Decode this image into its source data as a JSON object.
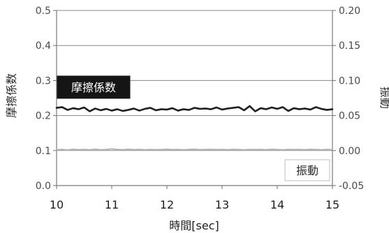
{
  "chart_data": {
    "type": "line",
    "title": "",
    "xlabel": "時間[sec]",
    "ylabel_left": "摩擦係数",
    "ylabel_right": "振動",
    "xlim": [
      10,
      15
    ],
    "ylim_left": [
      0.0,
      0.5
    ],
    "ylim_right": [
      -0.05,
      0.2
    ],
    "x_ticks": [
      "10",
      "11",
      "12",
      "13",
      "14",
      "15"
    ],
    "left_ticks": [
      "0.0",
      "0.1",
      "0.2",
      "0.3",
      "0.4",
      "0.5"
    ],
    "right_ticks": [
      "-0.05",
      "0.00",
      "0.05",
      "0.10",
      "0.15",
      "0.20"
    ],
    "grid": "horizontal",
    "series": [
      {
        "name": "摩擦係数",
        "axis": "left",
        "color": "#1f1f1f",
        "x": [
          10.0,
          10.1,
          10.2,
          10.3,
          10.4,
          10.5,
          10.6,
          10.7,
          10.8,
          10.9,
          11.0,
          11.1,
          11.2,
          11.3,
          11.4,
          11.5,
          11.6,
          11.7,
          11.8,
          11.9,
          12.0,
          12.1,
          12.2,
          12.3,
          12.4,
          12.5,
          12.6,
          12.7,
          12.8,
          12.9,
          13.0,
          13.1,
          13.2,
          13.3,
          13.4,
          13.5,
          13.6,
          13.7,
          13.8,
          13.9,
          14.0,
          14.1,
          14.2,
          14.3,
          14.4,
          14.5,
          14.6,
          14.7,
          14.8,
          14.9,
          15.0
        ],
        "y": [
          0.222,
          0.224,
          0.216,
          0.221,
          0.218,
          0.223,
          0.212,
          0.22,
          0.215,
          0.219,
          0.214,
          0.218,
          0.213,
          0.216,
          0.22,
          0.214,
          0.219,
          0.222,
          0.215,
          0.218,
          0.217,
          0.221,
          0.214,
          0.218,
          0.216,
          0.222,
          0.219,
          0.22,
          0.218,
          0.223,
          0.217,
          0.22,
          0.222,
          0.224,
          0.215,
          0.227,
          0.212,
          0.221,
          0.218,
          0.223,
          0.219,
          0.224,
          0.213,
          0.221,
          0.218,
          0.22,
          0.217,
          0.224,
          0.219,
          0.216,
          0.218
        ]
      },
      {
        "name": "振動",
        "axis": "right",
        "color": "#b5b5b5",
        "x": [
          10.0,
          10.1,
          10.2,
          10.3,
          10.4,
          10.5,
          10.6,
          10.7,
          10.8,
          10.9,
          11.0,
          11.1,
          11.2,
          11.3,
          11.4,
          11.5,
          11.6,
          11.7,
          11.8,
          11.9,
          12.0,
          12.1,
          12.2,
          12.3,
          12.4,
          12.5,
          12.6,
          12.7,
          12.8,
          12.9,
          13.0,
          13.1,
          13.2,
          13.3,
          13.4,
          13.5,
          13.6,
          13.7,
          13.8,
          13.9,
          14.0,
          14.1,
          14.2,
          14.3,
          14.4,
          14.5,
          14.6,
          14.7,
          14.8,
          14.9,
          15.0
        ],
        "y": [
          0.001,
          0.0015,
          0.0008,
          0.0018,
          0.0012,
          0.0016,
          0.001,
          0.0019,
          0.0011,
          0.0014,
          0.0024,
          0.0015,
          0.0012,
          0.0018,
          0.0013,
          0.0017,
          0.0011,
          0.0016,
          0.0012,
          0.0014,
          0.0018,
          0.0013,
          0.0016,
          0.0011,
          0.0015,
          0.0019,
          0.0012,
          0.0014,
          0.0017,
          0.0013,
          0.0015,
          0.0012,
          0.0017,
          0.0014,
          0.0011,
          0.0016,
          0.0013,
          0.0015,
          0.0012,
          0.0018,
          0.0014,
          0.0011,
          0.0016,
          0.0013,
          0.0015,
          0.0012,
          0.0017,
          0.0014,
          0.0011,
          0.0015,
          0.0013
        ]
      }
    ],
    "annotations": [
      {
        "text": "摩擦係数",
        "series": "摩擦係数",
        "style": "dark-box"
      },
      {
        "text": "振動",
        "series": "振動",
        "style": "light-box"
      }
    ]
  }
}
